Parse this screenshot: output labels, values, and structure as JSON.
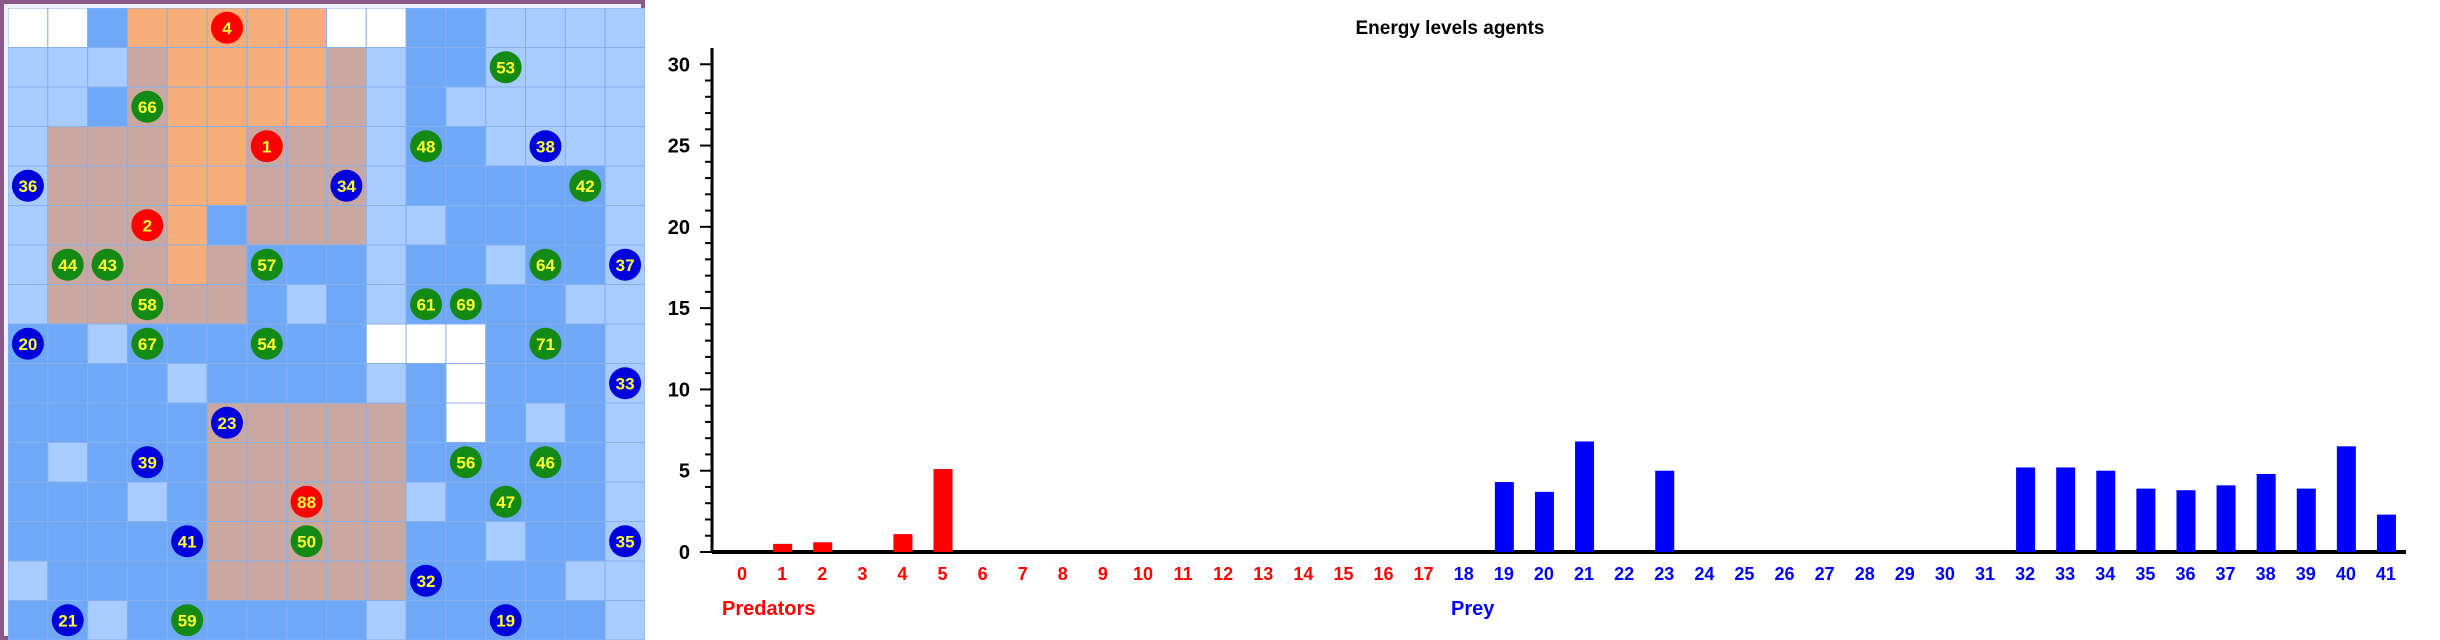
{
  "grid": {
    "rows": 16,
    "cols": 16,
    "white_cells": [
      [
        0,
        0
      ],
      [
        0,
        1
      ],
      [
        0,
        8
      ],
      [
        0,
        9
      ],
      [
        8,
        9
      ],
      [
        8,
        10
      ],
      [
        8,
        11
      ],
      [
        9,
        11
      ],
      [
        10,
        11
      ]
    ],
    "orange_cells": [
      [
        0,
        3
      ],
      [
        0,
        4
      ],
      [
        0,
        5
      ],
      [
        0,
        6
      ],
      [
        0,
        7
      ],
      [
        1,
        4
      ],
      [
        2,
        4
      ],
      [
        3,
        4
      ],
      [
        4,
        4
      ],
      [
        5,
        4
      ],
      [
        1,
        5
      ],
      [
        1,
        6
      ],
      [
        1,
        7
      ],
      [
        2,
        5
      ],
      [
        2,
        6
      ],
      [
        2,
        7
      ],
      [
        3,
        5
      ],
      [
        4,
        5
      ],
      [
        6,
        4
      ]
    ],
    "brown_cells": [
      [
        1,
        3
      ],
      [
        1,
        8
      ],
      [
        2,
        3
      ],
      [
        2,
        8
      ],
      [
        3,
        1
      ],
      [
        3,
        2
      ],
      [
        3,
        3
      ],
      [
        3,
        6
      ],
      [
        3,
        7
      ],
      [
        3,
        8
      ],
      [
        4,
        1
      ],
      [
        4,
        2
      ],
      [
        4,
        3
      ],
      [
        4,
        6
      ],
      [
        4,
        7
      ],
      [
        4,
        8
      ],
      [
        5,
        1
      ],
      [
        5,
        2
      ],
      [
        5,
        3
      ],
      [
        5,
        6
      ],
      [
        5,
        7
      ],
      [
        5,
        8
      ],
      [
        6,
        1
      ],
      [
        6,
        2
      ],
      [
        6,
        3
      ],
      [
        6,
        5
      ],
      [
        7,
        1
      ],
      [
        7,
        2
      ],
      [
        7,
        3
      ],
      [
        7,
        4
      ],
      [
        7,
        5
      ],
      [
        10,
        5
      ],
      [
        10,
        6
      ],
      [
        10,
        7
      ],
      [
        10,
        8
      ],
      [
        10,
        9
      ],
      [
        11,
        5
      ],
      [
        11,
        6
      ],
      [
        11,
        7
      ],
      [
        11,
        8
      ],
      [
        11,
        9
      ],
      [
        12,
        5
      ],
      [
        12,
        6
      ],
      [
        12,
        7
      ],
      [
        12,
        8
      ],
      [
        12,
        9
      ],
      [
        13,
        5
      ],
      [
        13,
        6
      ],
      [
        13,
        7
      ],
      [
        13,
        8
      ],
      [
        13,
        9
      ],
      [
        14,
        5
      ],
      [
        14,
        6
      ],
      [
        14,
        7
      ],
      [
        14,
        8
      ],
      [
        14,
        9
      ]
    ],
    "predators": [
      {
        "id": "4",
        "row": 0,
        "col": 5
      },
      {
        "id": "1",
        "row": 3,
        "col": 6
      },
      {
        "id": "2",
        "row": 5,
        "col": 3
      },
      {
        "id": "88",
        "row": 12,
        "col": 7
      }
    ],
    "prey": [
      {
        "id": "36",
        "row": 4,
        "col": 0
      },
      {
        "id": "34",
        "row": 4,
        "col": 8
      },
      {
        "id": "38",
        "row": 3,
        "col": 13
      },
      {
        "id": "37",
        "row": 6,
        "col": 15
      },
      {
        "id": "20",
        "row": 8,
        "col": 0
      },
      {
        "id": "33",
        "row": 9,
        "col": 15
      },
      {
        "id": "23",
        "row": 10,
        "col": 5
      },
      {
        "id": "39",
        "row": 11,
        "col": 3
      },
      {
        "id": "41",
        "row": 13,
        "col": 4
      },
      {
        "id": "35",
        "row": 13,
        "col": 15
      },
      {
        "id": "32",
        "row": 14,
        "col": 10
      },
      {
        "id": "21",
        "row": 15,
        "col": 1
      },
      {
        "id": "19",
        "row": 15,
        "col": 12
      }
    ],
    "plants": [
      {
        "id": "53",
        "row": 1,
        "col": 12
      },
      {
        "id": "66",
        "row": 2,
        "col": 3
      },
      {
        "id": "48",
        "row": 3,
        "col": 10
      },
      {
        "id": "42",
        "row": 4,
        "col": 14
      },
      {
        "id": "44",
        "row": 6,
        "col": 1
      },
      {
        "id": "43",
        "row": 6,
        "col": 2
      },
      {
        "id": "57",
        "row": 6,
        "col": 6
      },
      {
        "id": "64",
        "row": 6,
        "col": 13
      },
      {
        "id": "58",
        "row": 7,
        "col": 3
      },
      {
        "id": "61",
        "row": 7,
        "col": 10
      },
      {
        "id": "69",
        "row": 7,
        "col": 11
      },
      {
        "id": "67",
        "row": 8,
        "col": 3
      },
      {
        "id": "54",
        "row": 8,
        "col": 6
      },
      {
        "id": "71",
        "row": 8,
        "col": 13
      },
      {
        "id": "56",
        "row": 11,
        "col": 11
      },
      {
        "id": "46",
        "row": 11,
        "col": 13
      },
      {
        "id": "47",
        "row": 12,
        "col": 12
      },
      {
        "id": "50",
        "row": 13,
        "col": 7
      },
      {
        "id": "59",
        "row": 15,
        "col": 4
      }
    ],
    "colors": {
      "predator": "#ff0000",
      "prey": "#0000dd",
      "plant": "#138a13",
      "label": "#ffff33",
      "orange_patch": "#f8ae78",
      "brown_patch": "#c8a8a0",
      "water_light": "#a8ccff",
      "water_dark": "#70a8f8"
    }
  },
  "chart_data": {
    "type": "bar",
    "title": "Energy levels agents",
    "ylim": [
      0,
      31
    ],
    "yticks": [
      0,
      5,
      10,
      15,
      20,
      25,
      30
    ],
    "categories": [
      "0",
      "1",
      "2",
      "3",
      "4",
      "5",
      "6",
      "7",
      "8",
      "9",
      "10",
      "11",
      "12",
      "13",
      "14",
      "15",
      "16",
      "17",
      "18",
      "19",
      "20",
      "21",
      "22",
      "23",
      "24",
      "25",
      "26",
      "27",
      "28",
      "29",
      "30",
      "31",
      "32",
      "33",
      "34",
      "35",
      "36",
      "37",
      "38",
      "39",
      "40",
      "41"
    ],
    "predator_count": 18,
    "values": [
      0,
      0.5,
      0.6,
      0,
      1.1,
      5.1,
      0,
      0,
      0,
      0,
      0,
      0,
      0,
      0,
      0,
      0,
      0,
      0,
      0,
      4.3,
      3.7,
      6.8,
      0,
      5.0,
      0,
      0,
      0,
      0,
      0,
      0,
      0,
      0,
      5.2,
      5.2,
      5.0,
      3.9,
      3.8,
      4.1,
      4.8,
      3.9,
      6.5,
      2.3
    ],
    "groups": [
      {
        "label": "Predators",
        "color": "#ff0000"
      },
      {
        "label": "Prey",
        "color": "#0000ff"
      }
    ]
  }
}
